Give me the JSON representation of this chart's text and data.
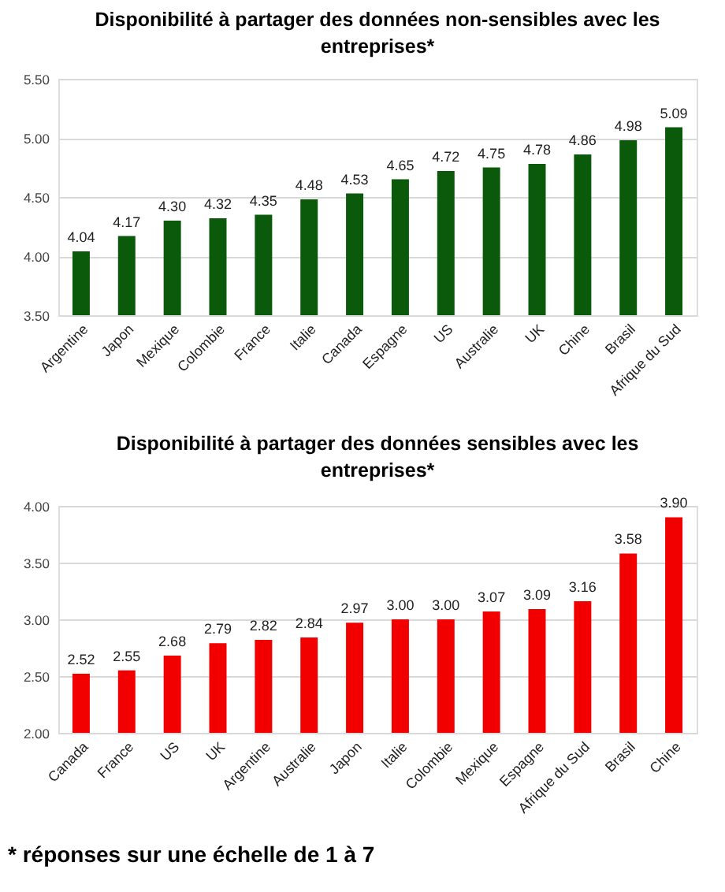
{
  "chart_data": [
    {
      "type": "bar",
      "title": "Disponibilité à partager des données non-sensibles avec les entreprises*",
      "categories": [
        "Argentine",
        "Japon",
        "Mexique",
        "Colombie",
        "France",
        "Italie",
        "Canada",
        "Espagne",
        "US",
        "Australie",
        "UK",
        "Chine",
        "Brasil",
        "Afrique du Sud"
      ],
      "values": [
        4.04,
        4.17,
        4.3,
        4.32,
        4.35,
        4.48,
        4.53,
        4.65,
        4.72,
        4.75,
        4.78,
        4.86,
        4.98,
        5.09
      ],
      "value_labels": [
        "4.04",
        "4.17",
        "4.30",
        "4.32",
        "4.35",
        "4.48",
        "4.53",
        "4.65",
        "4.72",
        "4.75",
        "4.78",
        "4.86",
        "4.98",
        "5.09"
      ],
      "color": "#0b5a0b",
      "ylim": [
        3.5,
        5.5
      ],
      "yticks": [
        {
          "value": 3.5,
          "label": "3.50"
        },
        {
          "value": 4.0,
          "label": "4.00"
        },
        {
          "value": 4.5,
          "label": "4.50"
        },
        {
          "value": 5.0,
          "label": "5.00"
        },
        {
          "value": 5.5,
          "label": "5.50"
        }
      ],
      "grid": "y"
    },
    {
      "type": "bar",
      "title": "Disponibilité à partager des données sensibles avec les entreprises*",
      "categories": [
        "Canada",
        "France",
        "US",
        "UK",
        "Argentine",
        "Australie",
        "Japon",
        "Italie",
        "Colombie",
        "Mexique",
        "Espagne",
        "Afrique du Sud",
        "Brasil",
        "Chine"
      ],
      "values": [
        2.52,
        2.55,
        2.68,
        2.79,
        2.82,
        2.84,
        2.97,
        3.0,
        3.0,
        3.07,
        3.09,
        3.16,
        3.58,
        3.9
      ],
      "value_labels": [
        "2.52",
        "2.55",
        "2.68",
        "2.79",
        "2.82",
        "2.84",
        "2.97",
        "3.00",
        "3.00",
        "3.07",
        "3.09",
        "3.16",
        "3.58",
        "3.90"
      ],
      "color": "#f20000",
      "ylim": [
        2.0,
        4.0
      ],
      "yticks": [
        {
          "value": 2.0,
          "label": "2.00"
        },
        {
          "value": 2.5,
          "label": "2.50"
        },
        {
          "value": 3.0,
          "label": "3.00"
        },
        {
          "value": 3.5,
          "label": "3.50"
        },
        {
          "value": 4.0,
          "label": "4.00"
        }
      ],
      "grid": "y",
      "annotations": [
        "* réponses sur une échelle de 1 à 7"
      ]
    }
  ]
}
